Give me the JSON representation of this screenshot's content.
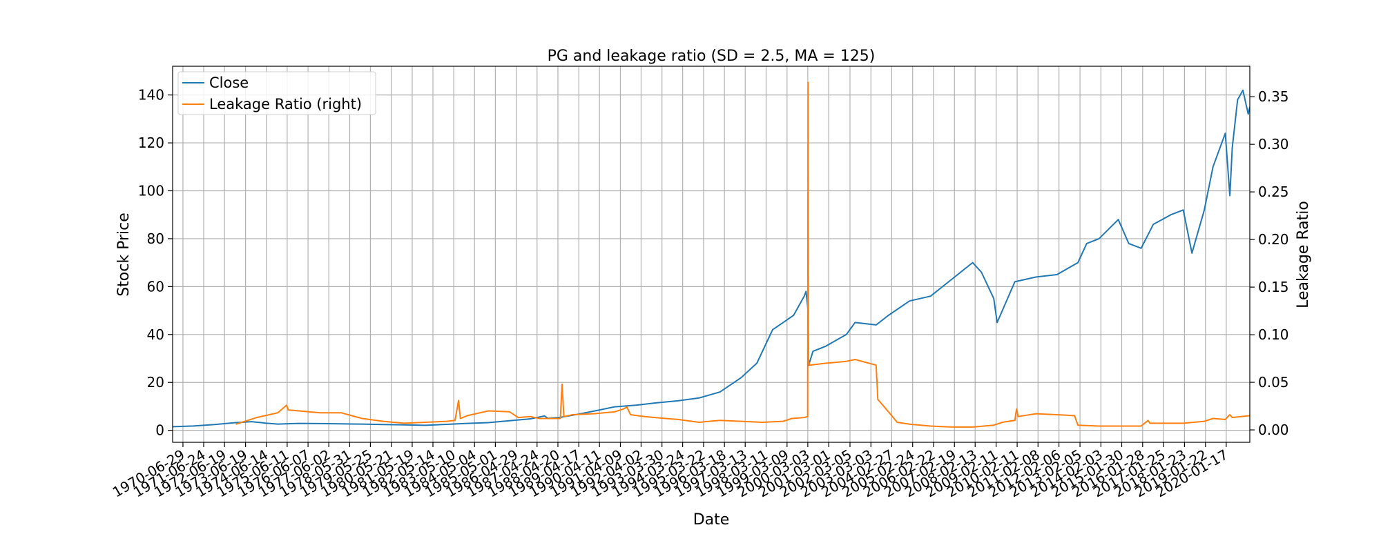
{
  "chart_data": {
    "type": "line",
    "title": "PG and leakage ratio (SD = 2.5, MA = 125)",
    "xlabel": "Date",
    "ylabel": "Stock Price",
    "y2label": "Leakage Ratio",
    "x_tick_labels": [
      "1970-06-29",
      "1971-06-24",
      "1972-06-19",
      "1973-06-19",
      "1974-06-14",
      "1975-06-11",
      "1976-06-07",
      "1977-06-02",
      "1978-05-31",
      "1979-05-25",
      "1980-05-21",
      "1981-05-19",
      "1982-05-14",
      "1983-05-10",
      "1984-05-04",
      "1985-05-01",
      "1986-04-29",
      "1987-04-24",
      "1988-04-20",
      "1989-04-17",
      "1990-04-11",
      "1991-04-09",
      "1992-04-02",
      "1993-03-30",
      "1994-03-24",
      "1995-03-22",
      "1996-03-18",
      "1997-03-13",
      "1998-03-11",
      "1999-03-09",
      "2000-03-03",
      "2001-03-01",
      "2002-03-05",
      "2003-03-03",
      "2004-02-27",
      "2005-02-24",
      "2006-02-22",
      "2007-02-19",
      "2008-02-13",
      "2009-02-11",
      "2010-02-11",
      "2011-02-08",
      "2012-02-06",
      "2013-02-05",
      "2014-02-03",
      "2015-01-30",
      "2016-01-28",
      "2017-01-25",
      "2018-01-23",
      "2019-01-22",
      "2020-01-17"
    ],
    "x_range": [
      "1970-01-01",
      "2021-03-01"
    ],
    "ylim": [
      -5,
      152
    ],
    "y_ticks": [
      0,
      20,
      40,
      60,
      80,
      100,
      120,
      140
    ],
    "y2lim": [
      -0.013,
      0.382
    ],
    "y2_ticks": [
      0.0,
      0.05,
      0.1,
      0.15,
      0.2,
      0.25,
      0.3,
      0.35
    ],
    "y2_tick_labels": [
      "0.00",
      "0.05",
      "0.10",
      "0.15",
      "0.20",
      "0.25",
      "0.30",
      "0.35"
    ],
    "grid": true,
    "legend_position": "top-left",
    "series": [
      {
        "name": "Close",
        "axis": "left",
        "color": "#1f77b4",
        "points": [
          [
            "1970-01-01",
            1.5
          ],
          [
            "1971-01-01",
            1.8
          ],
          [
            "1972-01-01",
            2.4
          ],
          [
            "1973-01-01",
            3.2
          ],
          [
            "1973-10-01",
            3.6
          ],
          [
            "1974-06-01",
            3.0
          ],
          [
            "1975-01-01",
            2.6
          ],
          [
            "1976-01-01",
            2.9
          ],
          [
            "1977-01-01",
            2.8
          ],
          [
            "1978-01-01",
            2.7
          ],
          [
            "1979-01-01",
            2.6
          ],
          [
            "1980-01-01",
            2.4
          ],
          [
            "1981-01-01",
            2.3
          ],
          [
            "1982-01-01",
            2.1
          ],
          [
            "1983-01-01",
            2.5
          ],
          [
            "1984-01-01",
            2.9
          ],
          [
            "1985-01-01",
            3.2
          ],
          [
            "1986-01-01",
            4.0
          ],
          [
            "1987-01-01",
            4.8
          ],
          [
            "1987-09-01",
            6.0
          ],
          [
            "1987-11-01",
            5.0
          ],
          [
            "1988-06-01",
            5.4
          ],
          [
            "1989-01-01",
            6.3
          ],
          [
            "1990-01-01",
            8.0
          ],
          [
            "1991-01-01",
            9.8
          ],
          [
            "1992-01-01",
            10.5
          ],
          [
            "1993-01-01",
            11.5
          ],
          [
            "1994-01-01",
            12.3
          ],
          [
            "1995-01-01",
            13.5
          ],
          [
            "1996-01-01",
            16.0
          ],
          [
            "1997-01-01",
            22.0
          ],
          [
            "1997-10-01",
            28.0
          ],
          [
            "1998-07-01",
            42.0
          ],
          [
            "1999-01-01",
            45.0
          ],
          [
            "1999-07-01",
            48.0
          ],
          [
            "2000-01-01",
            56.0
          ],
          [
            "2000-02-01",
            58.0
          ],
          [
            "2000-03-08",
            50.0
          ],
          [
            "2000-03-15",
            27.0
          ],
          [
            "2000-06-01",
            33.0
          ],
          [
            "2001-01-01",
            35.0
          ],
          [
            "2002-01-01",
            40.0
          ],
          [
            "2002-06-01",
            45.0
          ],
          [
            "2003-06-01",
            44.0
          ],
          [
            "2004-01-01",
            48.0
          ],
          [
            "2005-01-01",
            54.0
          ],
          [
            "2006-01-01",
            56.0
          ],
          [
            "2007-01-01",
            63.0
          ],
          [
            "2008-01-01",
            70.0
          ],
          [
            "2008-06-01",
            66.0
          ],
          [
            "2009-01-01",
            55.0
          ],
          [
            "2009-03-01",
            45.0
          ],
          [
            "2010-01-01",
            62.0
          ],
          [
            "2011-01-01",
            64.0
          ],
          [
            "2012-01-01",
            65.0
          ],
          [
            "2013-01-01",
            70.0
          ],
          [
            "2013-06-01",
            78.0
          ],
          [
            "2014-01-01",
            80.0
          ],
          [
            "2014-12-01",
            88.0
          ],
          [
            "2015-06-01",
            78.0
          ],
          [
            "2016-01-01",
            76.0
          ],
          [
            "2016-08-01",
            86.0
          ],
          [
            "2017-06-01",
            90.0
          ],
          [
            "2018-01-01",
            92.0
          ],
          [
            "2018-06-01",
            74.0
          ],
          [
            "2019-01-01",
            92.0
          ],
          [
            "2019-06-01",
            110.0
          ],
          [
            "2020-01-01",
            124.0
          ],
          [
            "2020-03-20",
            98.0
          ],
          [
            "2020-05-01",
            118.0
          ],
          [
            "2020-08-01",
            138.0
          ],
          [
            "2020-11-01",
            142.0
          ],
          [
            "2021-02-01",
            132.0
          ],
          [
            "2021-03-01",
            135.0
          ]
        ]
      },
      {
        "name": "Leakage Ratio (right)",
        "axis": "right",
        "color": "#ff7f0e",
        "points": [
          [
            "1973-01-01",
            0.006
          ],
          [
            "1974-01-01",
            0.013
          ],
          [
            "1975-01-01",
            0.018
          ],
          [
            "1975-06-01",
            0.026
          ],
          [
            "1975-07-01",
            0.021
          ],
          [
            "1976-01-01",
            0.02
          ],
          [
            "1977-01-01",
            0.018
          ],
          [
            "1978-01-01",
            0.018
          ],
          [
            "1979-01-01",
            0.012
          ],
          [
            "1980-01-01",
            0.009
          ],
          [
            "1981-01-01",
            0.007
          ],
          [
            "1982-01-01",
            0.008
          ],
          [
            "1983-01-01",
            0.009
          ],
          [
            "1983-06-01",
            0.01
          ],
          [
            "1983-08-01",
            0.031
          ],
          [
            "1983-09-01",
            0.012
          ],
          [
            "1984-01-01",
            0.015
          ],
          [
            "1985-01-01",
            0.02
          ],
          [
            "1986-01-01",
            0.019
          ],
          [
            "1986-06-01",
            0.013
          ],
          [
            "1987-01-01",
            0.014
          ],
          [
            "1987-06-01",
            0.012
          ],
          [
            "1988-06-01",
            0.012
          ],
          [
            "1988-07-01",
            0.048
          ],
          [
            "1988-08-01",
            0.014
          ],
          [
            "1989-01-01",
            0.016
          ],
          [
            "1990-01-01",
            0.017
          ],
          [
            "1991-01-01",
            0.019
          ],
          [
            "1991-06-01",
            0.022
          ],
          [
            "1991-08-01",
            0.024
          ],
          [
            "1991-10-01",
            0.016
          ],
          [
            "1992-06-01",
            0.014
          ],
          [
            "1993-06-01",
            0.012
          ],
          [
            "1994-01-01",
            0.011
          ],
          [
            "1995-01-01",
            0.008
          ],
          [
            "1996-01-01",
            0.01
          ],
          [
            "1997-01-01",
            0.009
          ],
          [
            "1998-01-01",
            0.008
          ],
          [
            "1999-01-01",
            0.009
          ],
          [
            "1999-06-01",
            0.012
          ],
          [
            "2000-01-01",
            0.013
          ],
          [
            "2000-03-01",
            0.014
          ],
          [
            "2000-03-08",
            0.365
          ],
          [
            "2000-03-15",
            0.073
          ],
          [
            "2000-04-01",
            0.068
          ],
          [
            "2001-01-01",
            0.07
          ],
          [
            "2002-01-01",
            0.072
          ],
          [
            "2002-06-01",
            0.074
          ],
          [
            "2003-06-01",
            0.068
          ],
          [
            "2003-07-01",
            0.032
          ],
          [
            "2004-01-01",
            0.019
          ],
          [
            "2004-06-01",
            0.008
          ],
          [
            "2005-01-01",
            0.006
          ],
          [
            "2006-01-01",
            0.004
          ],
          [
            "2007-01-01",
            0.003
          ],
          [
            "2008-01-01",
            0.003
          ],
          [
            "2009-01-01",
            0.005
          ],
          [
            "2009-06-01",
            0.008
          ],
          [
            "2010-01-01",
            0.01
          ],
          [
            "2010-02-01",
            0.022
          ],
          [
            "2010-03-01",
            0.014
          ],
          [
            "2011-01-01",
            0.017
          ],
          [
            "2012-01-01",
            0.016
          ],
          [
            "2012-11-01",
            0.015
          ],
          [
            "2013-01-01",
            0.005
          ],
          [
            "2014-01-01",
            0.004
          ],
          [
            "2015-01-01",
            0.004
          ],
          [
            "2016-01-01",
            0.004
          ],
          [
            "2016-05-01",
            0.01
          ],
          [
            "2016-06-01",
            0.007
          ],
          [
            "2017-01-01",
            0.007
          ],
          [
            "2018-01-01",
            0.007
          ],
          [
            "2019-01-01",
            0.009
          ],
          [
            "2019-06-01",
            0.012
          ],
          [
            "2020-01-01",
            0.011
          ],
          [
            "2020-03-20",
            0.016
          ],
          [
            "2020-05-01",
            0.013
          ],
          [
            "2021-03-01",
            0.015
          ]
        ]
      }
    ]
  }
}
